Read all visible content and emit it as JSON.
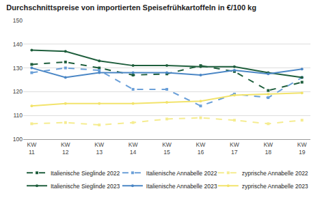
{
  "chart_data": {
    "type": "line",
    "title": "Durchschnittspreise von importierten Speisefrühkartoffeln in €/100 kg",
    "categories": [
      "KW 11",
      "KW 12",
      "KW 13",
      "KW 14",
      "KW 15",
      "KW 16",
      "KW 17",
      "KW 18",
      "KW 19"
    ],
    "ylim": [
      100,
      150
    ],
    "yticks": [
      100,
      110,
      120,
      130,
      140,
      150
    ],
    "grid": true,
    "legend": "bottom",
    "series": [
      {
        "name": "Italienische Sieglinde 2022",
        "color": "#1e5e3c",
        "line_style": "dash",
        "marker": "square",
        "values": [
          131.5,
          132.5,
          130,
          127,
          127.5,
          131,
          128.5,
          120.5,
          124
        ]
      },
      {
        "name": "Italienische Annabelle 2022",
        "color": "#6a9fd8",
        "line_style": "dash",
        "marker": "square",
        "values": [
          128,
          130,
          129,
          121,
          121,
          114,
          119,
          117.5,
          126
        ]
      },
      {
        "name": "zyprische Annabelle 2022",
        "color": "#f5ec8f",
        "line_style": "dash",
        "marker": "square",
        "values": [
          106.5,
          107,
          106,
          107,
          108.5,
          109,
          108,
          106.5,
          108
        ]
      },
      {
        "name": "Italienische Sieglinde 2023",
        "color": "#1e5e3c",
        "line_style": "solid",
        "marker": "circle",
        "values": [
          137.5,
          137,
          133,
          131,
          131,
          130.5,
          130.5,
          128,
          126
        ]
      },
      {
        "name": "Italienische Annabelle 2023",
        "color": "#4a86c5",
        "line_style": "solid",
        "marker": "circle",
        "values": [
          130,
          126,
          128,
          128,
          128,
          127,
          129,
          127.5,
          129.5
        ]
      },
      {
        "name": "zyprische Annabelle 2023",
        "color": "#f2e36a",
        "line_style": "solid",
        "marker": "circle",
        "values": [
          114,
          115,
          115,
          115,
          115.5,
          116,
          118.5,
          119,
          119.5
        ]
      }
    ]
  }
}
